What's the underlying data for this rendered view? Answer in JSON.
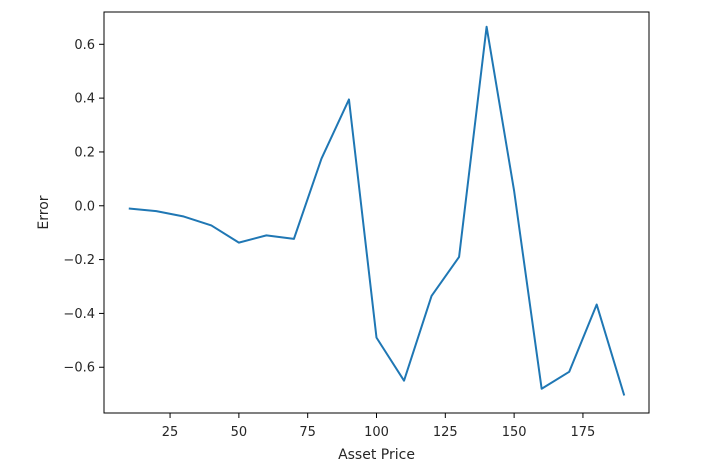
{
  "chart_data": {
    "type": "line",
    "xlabel": "Asset Price",
    "ylabel": "Error",
    "xlim": [
      1,
      199
    ],
    "ylim": [
      -0.77,
      0.72
    ],
    "xticks": [
      25,
      50,
      75,
      100,
      125,
      150,
      175
    ],
    "yticks": [
      -0.6,
      -0.4,
      -0.2,
      0.0,
      0.2,
      0.4,
      0.6
    ],
    "xtick_labels": [
      "25",
      "50",
      "75",
      "100",
      "125",
      "150",
      "175"
    ],
    "ytick_labels": [
      "−0.6",
      "−0.4",
      "−0.2",
      "0.0",
      "0.2",
      "0.4",
      "0.6"
    ],
    "grid": false,
    "series": [
      {
        "color": "#1f77b4",
        "x": [
          10,
          20,
          30,
          40,
          50,
          60,
          70,
          80,
          90,
          100,
          110,
          120,
          130,
          140,
          150,
          160,
          170,
          180,
          190
        ],
        "y": [
          -0.01,
          -0.02,
          -0.04,
          -0.073,
          -0.137,
          -0.11,
          -0.123,
          0.175,
          0.395,
          -0.49,
          -0.65,
          -0.335,
          -0.19,
          0.665,
          0.055,
          -0.68,
          -0.617,
          -0.367,
          -0.705
        ]
      }
    ]
  }
}
